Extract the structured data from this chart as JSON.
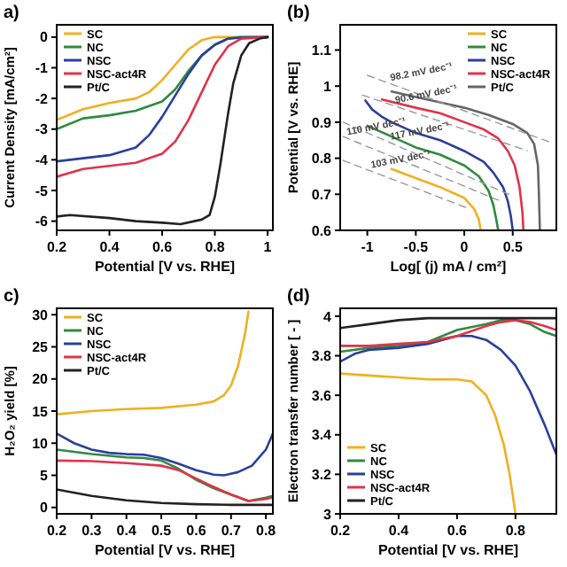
{
  "chart_data": [
    {
      "type": "line",
      "title": "a)",
      "xlabel": "Potential [V vs. RHE]",
      "ylabel": "Current Density [mA/cm²]",
      "xlim": [
        0.2,
        1.02
      ],
      "ylim": [
        -6.3,
        0.4
      ],
      "xticks": [
        0.2,
        0.4,
        0.6,
        0.8,
        1
      ],
      "yticks": [
        0,
        -1,
        -2,
        -3,
        -4,
        -5,
        -6
      ],
      "legend": "top left",
      "series": [
        {
          "name": "SC",
          "color": "#f0b020",
          "x": [
            0.2,
            0.3,
            0.4,
            0.5,
            0.55,
            0.6,
            0.65,
            0.7,
            0.75,
            0.8,
            1.0
          ],
          "values": [
            -2.7,
            -2.35,
            -2.15,
            -2.0,
            -1.8,
            -1.4,
            -0.9,
            -0.4,
            -0.1,
            0,
            0
          ]
        },
        {
          "name": "NC",
          "color": "#2e8b3e",
          "x": [
            0.2,
            0.3,
            0.4,
            0.5,
            0.6,
            0.65,
            0.7,
            0.75,
            0.8,
            0.85,
            0.9,
            1.0
          ],
          "values": [
            -3.0,
            -2.65,
            -2.55,
            -2.4,
            -2.1,
            -1.7,
            -1.1,
            -0.6,
            -0.25,
            -0.05,
            0,
            0
          ]
        },
        {
          "name": "NSC",
          "color": "#2b3f9c",
          "x": [
            0.2,
            0.3,
            0.4,
            0.5,
            0.55,
            0.6,
            0.65,
            0.7,
            0.75,
            0.8,
            0.85,
            0.9,
            1.0
          ],
          "values": [
            -4.05,
            -3.95,
            -3.85,
            -3.6,
            -3.2,
            -2.6,
            -1.9,
            -1.2,
            -0.6,
            -0.25,
            -0.05,
            -0.02,
            0
          ]
        },
        {
          "name": "NSC-act4R",
          "color": "#e0334a",
          "x": [
            0.2,
            0.3,
            0.4,
            0.5,
            0.6,
            0.65,
            0.7,
            0.75,
            0.8,
            0.85,
            0.9,
            1.0
          ],
          "values": [
            -4.55,
            -4.3,
            -4.2,
            -4.1,
            -3.8,
            -3.4,
            -2.7,
            -1.8,
            -0.9,
            -0.3,
            -0.05,
            0
          ]
        },
        {
          "name": "Pt/C",
          "color": "#222222",
          "x": [
            0.2,
            0.25,
            0.4,
            0.5,
            0.6,
            0.67,
            0.75,
            0.78,
            0.8,
            0.82,
            0.85,
            0.87,
            0.9,
            0.93,
            0.97,
            1.0
          ],
          "values": [
            -5.85,
            -5.8,
            -5.9,
            -6.0,
            -6.05,
            -6.1,
            -5.95,
            -5.8,
            -5.2,
            -4.2,
            -2.5,
            -1.5,
            -0.6,
            -0.2,
            -0.05,
            0
          ]
        }
      ]
    },
    {
      "type": "line",
      "title": "(b)",
      "xlabel": "Log[ (j) mA / cm²]",
      "ylabel": "Potential [V vs. RHE]",
      "xlim": [
        -1.28,
        0.95
      ],
      "ylim": [
        0.6,
        1.17
      ],
      "xticks": [
        -1,
        -0.5,
        0,
        0.5
      ],
      "yticks": [
        0.6,
        0.7,
        0.8,
        0.9,
        1,
        1.1
      ],
      "legend": "top right",
      "series": [
        {
          "name": "SC",
          "color": "#f0b020",
          "x": [
            -0.75,
            -0.5,
            -0.25,
            0,
            0.1,
            0.15,
            0.17
          ],
          "values": [
            0.77,
            0.745,
            0.72,
            0.69,
            0.66,
            0.63,
            0.6
          ]
        },
        {
          "name": "NC",
          "color": "#2e8b3e",
          "x": [
            -1.0,
            -0.75,
            -0.5,
            -0.25,
            0,
            0.15,
            0.25,
            0.3,
            0.33,
            0.35
          ],
          "values": [
            0.89,
            0.86,
            0.83,
            0.81,
            0.78,
            0.75,
            0.71,
            0.67,
            0.63,
            0.6
          ]
        },
        {
          "name": "NSC",
          "color": "#2b3f9c",
          "x": [
            -1.02,
            -0.95,
            -0.85,
            -0.75,
            -0.5,
            -0.25,
            0,
            0.2,
            0.3,
            0.4,
            0.45,
            0.48,
            0.5
          ],
          "values": [
            0.96,
            0.935,
            0.915,
            0.9,
            0.87,
            0.85,
            0.82,
            0.79,
            0.76,
            0.72,
            0.68,
            0.64,
            0.6
          ]
        },
        {
          "name": "NSC-act4R",
          "color": "#e0334a",
          "x": [
            -0.85,
            -0.5,
            -0.25,
            0,
            0.2,
            0.35,
            0.45,
            0.52,
            0.57,
            0.6,
            0.61
          ],
          "values": [
            0.963,
            0.94,
            0.925,
            0.9,
            0.88,
            0.855,
            0.82,
            0.78,
            0.72,
            0.65,
            0.6
          ]
        },
        {
          "name": "Pt/C",
          "color": "#666666",
          "x": [
            -0.75,
            -0.5,
            -0.25,
            0,
            0.25,
            0.5,
            0.65,
            0.72,
            0.76,
            0.77,
            0.78
          ],
          "values": [
            0.985,
            0.97,
            0.955,
            0.94,
            0.92,
            0.895,
            0.87,
            0.84,
            0.78,
            0.7,
            0.6
          ]
        },
        {
          "type": "line",
          "color": "#999999",
          "line_style": "dashed",
          "x": [
            -1.0,
            0.9
          ],
          "values": [
            1.03,
            0.843
          ]
        },
        {
          "type": "line",
          "color": "#999999",
          "line_style": "dashed",
          "x": [
            -1.05,
            0.65
          ],
          "values": [
            0.975,
            0.821
          ]
        },
        {
          "type": "line",
          "color": "#999999",
          "line_style": "dashed",
          "x": [
            -1.25,
            0.5
          ],
          "values": [
            0.9,
            0.695
          ]
        },
        {
          "type": "line",
          "color": "#999999",
          "line_style": "dashed",
          "x": [
            -1.25,
            0.35
          ],
          "values": [
            0.86,
            0.684
          ]
        },
        {
          "type": "line",
          "color": "#999999",
          "line_style": "dashed",
          "x": [
            -1.25,
            0.05
          ],
          "values": [
            0.794,
            0.66
          ]
        }
      ],
      "annotations": [
        {
          "text": "98.2 mV dec⁻¹",
          "x": -0.75,
          "y": 1.005
        },
        {
          "text": "90.6 mV dec⁻¹",
          "x": -0.7,
          "y": 0.943
        },
        {
          "text": "117 mV dec⁻¹",
          "x": -0.75,
          "y": 0.8415
        },
        {
          "text": "110 mV dec⁻¹",
          "x": -1.2,
          "y": 0.8545
        },
        {
          "text": "103 mV dec⁻¹",
          "x": -0.95,
          "y": 0.763
        }
      ]
    },
    {
      "type": "line",
      "title": "c)",
      "xlabel": "Potential [V vs. RHE]",
      "ylabel": "H₂O₂ yield [%]",
      "xlim": [
        0.2,
        0.82
      ],
      "ylim": [
        -1,
        31
      ],
      "xticks": [
        0.2,
        0.3,
        0.4,
        0.5,
        0.6,
        0.7,
        0.8
      ],
      "yticks": [
        0,
        5,
        10,
        15,
        20,
        25,
        30
      ],
      "legend": "top left",
      "series": [
        {
          "name": "SC",
          "color": "#f0b020",
          "x": [
            0.2,
            0.3,
            0.4,
            0.5,
            0.6,
            0.65,
            0.68,
            0.7,
            0.72,
            0.74,
            0.75
          ],
          "values": [
            14.5,
            15,
            15.3,
            15.5,
            16,
            16.5,
            17.5,
            19,
            22,
            27,
            30.5
          ]
        },
        {
          "name": "NC",
          "color": "#2e8b3e",
          "x": [
            0.2,
            0.3,
            0.4,
            0.45,
            0.5,
            0.55,
            0.6,
            0.65,
            0.7,
            0.75,
            0.8,
            0.82
          ],
          "values": [
            9,
            8.3,
            7.8,
            7.7,
            7.3,
            6,
            4.3,
            3,
            2,
            1,
            1.5,
            1.8
          ]
        },
        {
          "name": "NSC",
          "color": "#2b3f9c",
          "x": [
            0.2,
            0.25,
            0.3,
            0.35,
            0.4,
            0.45,
            0.5,
            0.55,
            0.6,
            0.65,
            0.68,
            0.72,
            0.76,
            0.8,
            0.82
          ],
          "values": [
            11.5,
            10,
            9,
            8.5,
            8.3,
            8.2,
            7.7,
            6.8,
            5.8,
            5.1,
            5,
            5.5,
            6.5,
            9,
            11.5
          ]
        },
        {
          "name": "NSC-act4R",
          "color": "#e0334a",
          "x": [
            0.2,
            0.3,
            0.4,
            0.5,
            0.55,
            0.6,
            0.65,
            0.7,
            0.75,
            0.8,
            0.82
          ],
          "values": [
            7.3,
            7.2,
            6.9,
            6.5,
            5.8,
            4.5,
            3.2,
            2,
            1,
            1.3,
            1.6
          ]
        },
        {
          "name": "Pt/C",
          "color": "#222222",
          "x": [
            0.2,
            0.3,
            0.4,
            0.5,
            0.6,
            0.7,
            0.82
          ],
          "values": [
            2.8,
            1.8,
            1.1,
            0.7,
            0.5,
            0.4,
            0.4
          ]
        }
      ]
    },
    {
      "type": "line",
      "title": "(d)",
      "xlabel": "Potential [V vs. RHE]",
      "ylabel": "Electron transfer number [ - ]",
      "xlim": [
        0.2,
        0.94
      ],
      "ylim": [
        3,
        4.04
      ],
      "xticks": [
        0.2,
        0.4,
        0.6,
        0.8
      ],
      "yticks": [
        3,
        3.2,
        3.4,
        3.6,
        3.8,
        4
      ],
      "legend": "bottom left",
      "series": [
        {
          "name": "SC",
          "color": "#f0b020",
          "x": [
            0.2,
            0.3,
            0.4,
            0.5,
            0.6,
            0.65,
            0.7,
            0.73,
            0.76,
            0.78,
            0.8
          ],
          "values": [
            3.71,
            3.7,
            3.69,
            3.68,
            3.68,
            3.67,
            3.6,
            3.5,
            3.35,
            3.2,
            3.0
          ]
        },
        {
          "name": "NC",
          "color": "#2e8b3e",
          "x": [
            0.2,
            0.3,
            0.4,
            0.5,
            0.55,
            0.6,
            0.7,
            0.75,
            0.8,
            0.85,
            0.9,
            0.94
          ],
          "values": [
            3.82,
            3.84,
            3.85,
            3.87,
            3.9,
            3.93,
            3.96,
            3.98,
            3.98,
            3.96,
            3.92,
            3.9
          ]
        },
        {
          "name": "NSC",
          "color": "#2b3f9c",
          "x": [
            0.2,
            0.25,
            0.3,
            0.4,
            0.5,
            0.55,
            0.6,
            0.65,
            0.7,
            0.75,
            0.8,
            0.85,
            0.9,
            0.94
          ],
          "values": [
            3.77,
            3.81,
            3.83,
            3.84,
            3.86,
            3.88,
            3.9,
            3.9,
            3.88,
            3.83,
            3.75,
            3.62,
            3.45,
            3.3
          ]
        },
        {
          "name": "NSC-act4R",
          "color": "#e0334a",
          "x": [
            0.2,
            0.3,
            0.4,
            0.5,
            0.6,
            0.7,
            0.75,
            0.8,
            0.85,
            0.9,
            0.94
          ],
          "values": [
            3.85,
            3.85,
            3.86,
            3.87,
            3.9,
            3.95,
            3.97,
            3.98,
            3.97,
            3.95,
            3.93
          ]
        },
        {
          "name": "Pt/C",
          "color": "#222222",
          "x": [
            0.2,
            0.3,
            0.4,
            0.5,
            0.6,
            0.7,
            0.8,
            0.94
          ],
          "values": [
            3.94,
            3.96,
            3.98,
            3.99,
            3.99,
            3.99,
            3.99,
            3.99
          ]
        }
      ]
    }
  ]
}
